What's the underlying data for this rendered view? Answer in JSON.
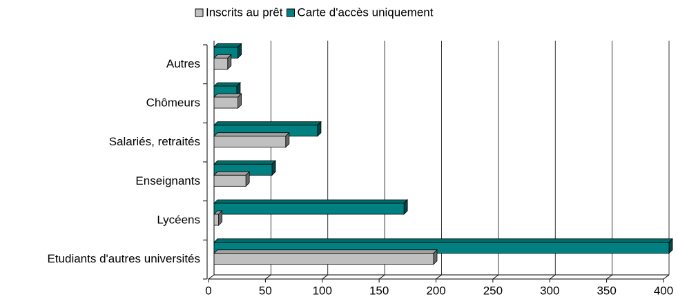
{
  "chart_data": {
    "type": "bar",
    "orientation": "horizontal",
    "categories": [
      "Etudiants d'autres universités",
      "Lycéens",
      "Enseignants",
      "Salariés, retraités",
      "Chômeurs",
      "Autres"
    ],
    "series": [
      {
        "name": "Inscrits au prêt",
        "color": "#c0c0c0",
        "values": [
          193,
          4,
          28,
          63,
          21,
          12
        ]
      },
      {
        "name": "Carte d'accès uniquement",
        "color": "#008080",
        "values": [
          400,
          167,
          51,
          91,
          20,
          21
        ]
      }
    ],
    "xlim": [
      0,
      400
    ],
    "xticks": [
      0,
      50,
      100,
      150,
      200,
      250,
      300,
      350,
      400
    ],
    "grid": true,
    "legend": "top"
  }
}
